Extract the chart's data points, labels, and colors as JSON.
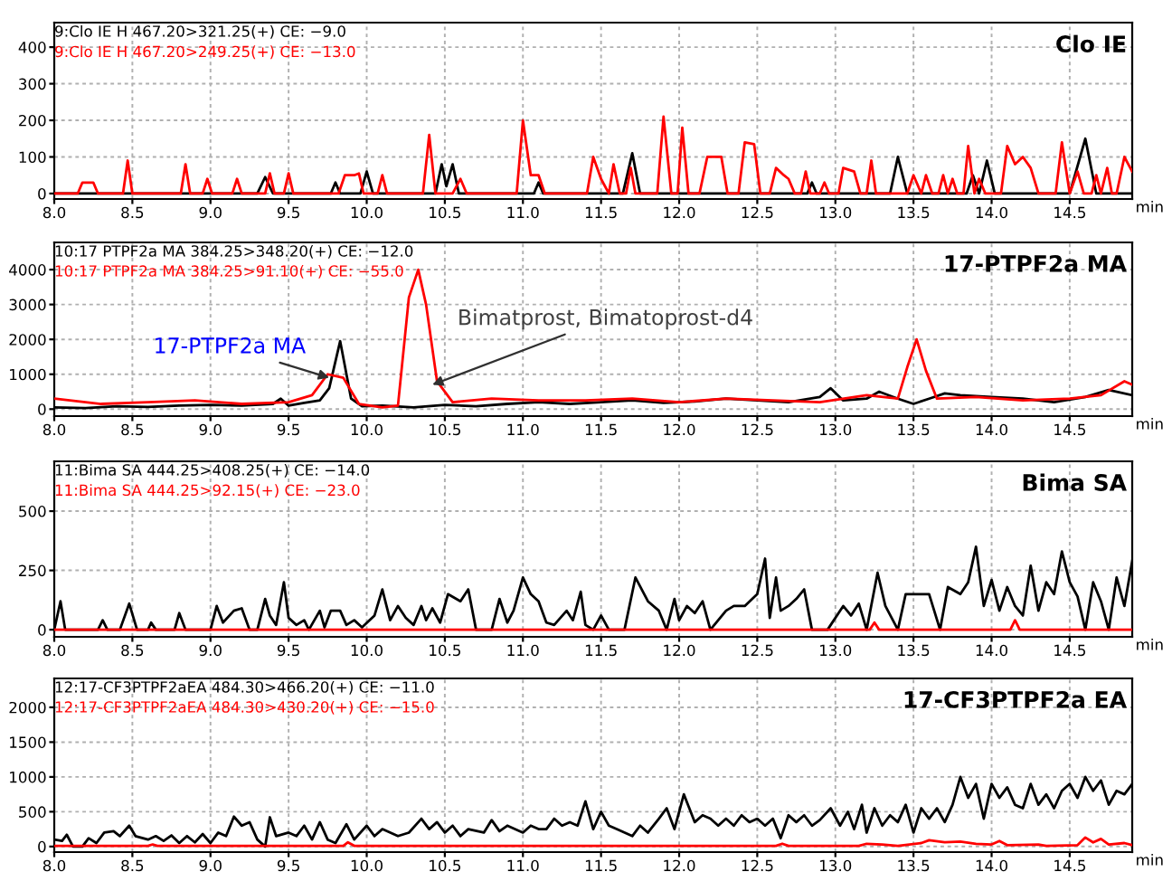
{
  "chart_data": [
    {
      "type": "line",
      "title": "Clo IE",
      "xlabel": "min",
      "xlim": [
        8.0,
        14.9
      ],
      "xticks": [
        {
          "value": 8,
          "label": "8.0"
        },
        8.5,
        {
          "value": 9,
          "label": "9.0"
        },
        9.5,
        {
          "value": 10,
          "label": "10.0"
        },
        10.5,
        {
          "value": 11,
          "label": "11.0"
        },
        11.5,
        {
          "value": 12,
          "label": "12.0"
        },
        12.5,
        {
          "value": 13,
          "label": "13.0"
        },
        13.5,
        {
          "value": 14,
          "label": "14.0"
        },
        14.5
      ],
      "ylim": [
        -15,
        467
      ],
      "yticks": [
        0,
        100,
        200,
        300,
        400
      ],
      "grid": true,
      "legend": false,
      "series": [
        {
          "name": "9:Clo IE H 467.20>321.25(+) CE: −9.0",
          "color": "#000000",
          "x": [
            8.0,
            9.3,
            9.35,
            9.4,
            9.77,
            9.8,
            9.83,
            9.96,
            10.0,
            10.04,
            10.44,
            10.48,
            10.51,
            10.55,
            10.59,
            11.07,
            11.1,
            11.13,
            11.64,
            11.7,
            11.75,
            12.82,
            12.85,
            12.88,
            13.35,
            13.4,
            13.46,
            13.84,
            13.88,
            13.92,
            13.97,
            14.02,
            14.5,
            14.6,
            14.67,
            14.9
          ],
          "values": [
            0,
            0,
            45,
            0,
            0,
            30,
            0,
            0,
            60,
            0,
            0,
            80,
            20,
            80,
            0,
            0,
            30,
            0,
            0,
            110,
            0,
            0,
            30,
            0,
            0,
            100,
            0,
            0,
            50,
            0,
            90,
            0,
            0,
            150,
            0,
            0
          ]
        },
        {
          "name": "9:Clo IE H 467.20>249.25(+) CE: −13.0",
          "color": "#ff0000",
          "x": [
            8.0,
            8.15,
            8.18,
            8.25,
            8.28,
            8.44,
            8.47,
            8.5,
            8.81,
            8.84,
            8.87,
            8.95,
            8.98,
            9.01,
            9.14,
            9.17,
            9.2,
            9.35,
            9.38,
            9.41,
            9.47,
            9.5,
            9.53,
            9.82,
            9.86,
            9.92,
            9.95,
            9.98,
            10.07,
            10.1,
            10.13,
            10.36,
            10.4,
            10.44,
            10.55,
            10.6,
            10.64,
            10.96,
            11.0,
            11.05,
            11.1,
            11.14,
            11.41,
            11.45,
            11.5,
            11.55,
            11.58,
            11.62,
            11.66,
            11.69,
            11.72,
            11.86,
            11.9,
            11.95,
            11.99,
            12.02,
            12.06,
            12.13,
            12.18,
            12.27,
            12.31,
            12.38,
            12.42,
            12.48,
            12.52,
            12.58,
            12.62,
            12.67,
            12.7,
            12.74,
            12.78,
            12.81,
            12.84,
            12.9,
            12.93,
            12.96,
            13.02,
            13.05,
            13.12,
            13.16,
            13.2,
            13.23,
            13.26,
            13.46,
            13.5,
            13.55,
            13.58,
            13.62,
            13.66,
            13.69,
            13.72,
            13.75,
            13.78,
            13.82,
            13.85,
            13.89,
            13.92,
            13.96,
            14.06,
            14.1,
            14.15,
            14.2,
            14.25,
            14.3,
            14.35,
            14.41,
            14.45,
            14.5,
            14.55,
            14.59,
            14.64,
            14.67,
            14.7,
            14.74,
            14.77,
            14.8,
            14.85,
            14.9
          ],
          "values": [
            0,
            0,
            30,
            30,
            0,
            0,
            90,
            0,
            0,
            80,
            0,
            0,
            40,
            0,
            0,
            40,
            0,
            0,
            55,
            0,
            0,
            55,
            0,
            0,
            50,
            50,
            55,
            0,
            0,
            50,
            0,
            0,
            160,
            0,
            0,
            40,
            0,
            0,
            200,
            50,
            50,
            0,
            0,
            100,
            40,
            0,
            80,
            0,
            0,
            70,
            0,
            0,
            210,
            0,
            0,
            180,
            0,
            0,
            100,
            100,
            0,
            0,
            140,
            135,
            0,
            0,
            70,
            50,
            40,
            0,
            0,
            60,
            0,
            0,
            30,
            0,
            0,
            70,
            60,
            0,
            0,
            90,
            0,
            0,
            50,
            0,
            50,
            0,
            0,
            50,
            0,
            40,
            0,
            0,
            130,
            0,
            40,
            0,
            0,
            130,
            80,
            100,
            70,
            0,
            0,
            0,
            140,
            0,
            60,
            0,
            0,
            50,
            0,
            70,
            0,
            0,
            100,
            60
          ]
        }
      ]
    },
    {
      "type": "line",
      "title": "17-PTPF2a MA",
      "xlabel": "min",
      "xlim": [
        8.0,
        14.9
      ],
      "xticks": [
        {
          "value": 8,
          "label": "8.0"
        },
        8.5,
        {
          "value": 9,
          "label": "9.0"
        },
        9.5,
        {
          "value": 10,
          "label": "10.0"
        },
        10.5,
        {
          "value": 11,
          "label": "11.0"
        },
        11.5,
        {
          "value": 12,
          "label": "12.0"
        },
        12.5,
        {
          "value": 13,
          "label": "13.0"
        },
        13.5,
        {
          "value": 14,
          "label": "14.0"
        },
        14.5
      ],
      "ylim": [
        -200,
        4780
      ],
      "yticks": [
        0,
        1000,
        2000,
        3000,
        4000
      ],
      "grid": true,
      "legend": false,
      "annotations": [
        {
          "text": "17-PTPF2a MA",
          "x": 9.76,
          "y": 900
        },
        {
          "text": "Bimatprost, Bimatoprost-d4",
          "x": 10.42,
          "y": 700
        }
      ],
      "series": [
        {
          "name": "10:17 PTPF2a MA 384.25>348.20(+) CE: −12.0",
          "color": "#000000",
          "x": [
            8.0,
            8.2,
            8.4,
            8.6,
            8.8,
            9.0,
            9.2,
            9.4,
            9.45,
            9.5,
            9.6,
            9.7,
            9.76,
            9.83,
            9.9,
            9.97,
            10.1,
            10.3,
            10.5,
            10.7,
            10.9,
            11.1,
            11.3,
            11.5,
            11.7,
            11.9,
            12.1,
            12.3,
            12.5,
            12.7,
            12.9,
            12.97,
            13.05,
            13.2,
            13.28,
            13.4,
            13.5,
            13.6,
            13.7,
            13.8,
            14.0,
            14.2,
            14.4,
            14.6,
            14.75,
            14.9
          ],
          "values": [
            50,
            30,
            80,
            60,
            100,
            120,
            100,
            150,
            300,
            100,
            180,
            250,
            600,
            1950,
            300,
            80,
            100,
            50,
            120,
            80,
            150,
            200,
            150,
            200,
            250,
            180,
            220,
            300,
            250,
            200,
            350,
            600,
            250,
            300,
            500,
            300,
            150,
            300,
            450,
            400,
            350,
            300,
            200,
            350,
            550,
            400
          ]
        },
        {
          "name": "10:17 PTPF2a MA 384.25>91.10(+) CE: −55.0",
          "color": "#ff0000",
          "x": [
            8.0,
            8.3,
            8.6,
            8.9,
            9.2,
            9.5,
            9.65,
            9.75,
            9.85,
            9.95,
            10.1,
            10.2,
            10.27,
            10.33,
            10.38,
            10.45,
            10.55,
            10.8,
            11.1,
            11.4,
            11.7,
            12.0,
            12.3,
            12.6,
            12.9,
            13.2,
            13.4,
            13.46,
            13.52,
            13.58,
            13.65,
            13.9,
            14.2,
            14.5,
            14.7,
            14.85,
            14.9
          ],
          "values": [
            300,
            150,
            200,
            250,
            150,
            200,
            400,
            1000,
            900,
            150,
            50,
            100,
            3200,
            4000,
            3000,
            800,
            200,
            300,
            250,
            250,
            300,
            200,
            300,
            250,
            200,
            400,
            300,
            1200,
            2000,
            1100,
            300,
            350,
            250,
            300,
            400,
            800,
            700
          ]
        }
      ]
    },
    {
      "type": "line",
      "title": "Bima SA",
      "xlabel": "min",
      "xlim": [
        8.0,
        14.9
      ],
      "xticks": [
        {
          "value": 8,
          "label": "8.0"
        },
        8.5,
        {
          "value": 9,
          "label": "9.0"
        },
        9.5,
        {
          "value": 10,
          "label": "10.0"
        },
        10.5,
        {
          "value": 11,
          "label": "11.0"
        },
        11.5,
        {
          "value": 12,
          "label": "12.0"
        },
        12.5,
        {
          "value": 13,
          "label": "13.0"
        },
        13.5,
        {
          "value": 14,
          "label": "14.0"
        },
        14.5
      ],
      "ylim": [
        -30,
        710
      ],
      "yticks": [
        0,
        250,
        500
      ],
      "grid": true,
      "legend": false,
      "series": [
        {
          "name": "11:Bima SA 444.25>408.25(+) CE: −14.0",
          "color": "#000000",
          "x": [
            8.0,
            8.04,
            8.07,
            8.1,
            8.28,
            8.31,
            8.34,
            8.42,
            8.48,
            8.53,
            8.6,
            8.62,
            8.65,
            8.77,
            8.8,
            8.84,
            9.0,
            9.04,
            9.08,
            9.15,
            9.2,
            9.25,
            9.3,
            9.35,
            9.38,
            9.42,
            9.47,
            9.5,
            9.55,
            9.6,
            9.63,
            9.7,
            9.73,
            9.77,
            9.83,
            9.87,
            9.92,
            9.97,
            10.05,
            10.1,
            10.15,
            10.2,
            10.25,
            10.3,
            10.35,
            10.38,
            10.42,
            10.47,
            10.52,
            10.6,
            10.65,
            10.7,
            10.8,
            10.85,
            10.9,
            10.94,
            11.0,
            11.05,
            11.1,
            11.15,
            11.2,
            11.28,
            11.32,
            11.37,
            11.4,
            11.45,
            11.5,
            11.55,
            11.65,
            11.72,
            11.8,
            11.87,
            11.92,
            11.97,
            12.0,
            12.05,
            12.1,
            12.15,
            12.2,
            12.25,
            12.3,
            12.35,
            12.42,
            12.5,
            12.55,
            12.58,
            12.62,
            12.65,
            12.7,
            12.75,
            12.8,
            12.85,
            12.95,
            13.05,
            13.1,
            13.15,
            13.2,
            13.27,
            13.32,
            13.4,
            13.45,
            13.55,
            13.6,
            13.67,
            13.72,
            13.8,
            13.85,
            13.9,
            13.95,
            14.0,
            14.05,
            14.1,
            14.15,
            14.2,
            14.25,
            14.3,
            14.35,
            14.4,
            14.45,
            14.5,
            14.55,
            14.6,
            14.65,
            14.7,
            14.75,
            14.8,
            14.85,
            14.9
          ],
          "values": [
            0,
            120,
            0,
            0,
            0,
            40,
            0,
            0,
            110,
            0,
            0,
            30,
            0,
            0,
            70,
            0,
            0,
            100,
            30,
            80,
            90,
            0,
            0,
            130,
            60,
            20,
            200,
            50,
            20,
            40,
            0,
            80,
            10,
            80,
            80,
            20,
            40,
            10,
            60,
            170,
            40,
            100,
            50,
            20,
            100,
            40,
            90,
            30,
            150,
            120,
            170,
            0,
            0,
            130,
            30,
            80,
            220,
            150,
            120,
            30,
            20,
            80,
            40,
            160,
            20,
            0,
            60,
            0,
            0,
            220,
            120,
            80,
            0,
            130,
            40,
            100,
            70,
            120,
            0,
            40,
            80,
            100,
            100,
            150,
            300,
            50,
            220,
            80,
            100,
            130,
            170,
            0,
            0,
            100,
            60,
            110,
            0,
            240,
            100,
            0,
            150,
            150,
            150,
            0,
            180,
            150,
            200,
            350,
            100,
            210,
            80,
            180,
            100,
            60,
            270,
            80,
            200,
            150,
            330,
            200,
            140,
            0,
            200,
            120,
            0,
            220,
            100,
            290
          ]
        },
        {
          "name": "11:Bima SA 444.25>92.15(+) CE: −23.0",
          "color": "#ff0000",
          "x": [
            8.0,
            13.22,
            13.25,
            13.28,
            14.12,
            14.15,
            14.18,
            14.9
          ],
          "values": [
            0,
            0,
            30,
            0,
            0,
            40,
            0,
            0
          ]
        }
      ]
    },
    {
      "type": "line",
      "title": "17-CF3PTPF2a EA",
      "xlabel": "min",
      "xlim": [
        8.0,
        14.9
      ],
      "xticks": [
        {
          "value": 8,
          "label": "8.0"
        },
        8.5,
        {
          "value": 9,
          "label": "9.0"
        },
        9.5,
        {
          "value": 10,
          "label": "10.0"
        },
        10.5,
        {
          "value": 11,
          "label": "11.0"
        },
        11.5,
        {
          "value": 12,
          "label": "12.0"
        },
        12.5,
        {
          "value": 13,
          "label": "13.0"
        },
        13.5,
        {
          "value": 14,
          "label": "14.0"
        },
        14.5
      ],
      "ylim": [
        -80,
        2415
      ],
      "yticks": [
        0,
        500,
        1000,
        1500,
        2000
      ],
      "grid": true,
      "legend": false,
      "series": [
        {
          "name": "12:17-CF3PTPF2aEA 484.30>466.20(+) CE: −11.0",
          "color": "#000000",
          "x": [
            8.0,
            8.05,
            8.08,
            8.12,
            8.18,
            8.22,
            8.27,
            8.32,
            8.38,
            8.42,
            8.48,
            8.52,
            8.6,
            8.65,
            8.7,
            8.75,
            8.8,
            8.85,
            8.9,
            8.95,
            9.0,
            9.05,
            9.1,
            9.15,
            9.2,
            9.25,
            9.3,
            9.35,
            9.38,
            9.42,
            9.5,
            9.55,
            9.6,
            9.65,
            9.7,
            9.75,
            9.8,
            9.87,
            9.92,
            10.0,
            10.05,
            10.1,
            10.2,
            10.27,
            10.35,
            10.4,
            10.45,
            10.5,
            10.55,
            10.6,
            10.65,
            10.75,
            10.8,
            10.85,
            10.9,
            11.0,
            11.05,
            11.1,
            11.15,
            11.2,
            11.25,
            11.3,
            11.35,
            11.4,
            11.45,
            11.5,
            11.55,
            11.6,
            11.7,
            11.75,
            11.8,
            11.87,
            11.92,
            11.97,
            12.03,
            12.1,
            12.15,
            12.2,
            12.25,
            12.3,
            12.35,
            12.4,
            12.45,
            12.5,
            12.55,
            12.6,
            12.65,
            12.7,
            12.75,
            12.8,
            12.85,
            12.9,
            12.97,
            13.03,
            13.08,
            13.12,
            13.17,
            13.2,
            13.25,
            13.3,
            13.35,
            13.4,
            13.45,
            13.5,
            13.55,
            13.6,
            13.65,
            13.7,
            13.75,
            13.8,
            13.85,
            13.9,
            13.95,
            14.0,
            14.05,
            14.1,
            14.15,
            14.2,
            14.25,
            14.3,
            14.35,
            14.4,
            14.45,
            14.5,
            14.55,
            14.6,
            14.65,
            14.7,
            14.75,
            14.8,
            14.85,
            14.9
          ],
          "values": [
            100,
            80,
            170,
            0,
            0,
            120,
            50,
            200,
            220,
            150,
            300,
            150,
            100,
            150,
            80,
            160,
            50,
            150,
            60,
            180,
            50,
            200,
            150,
            430,
            300,
            350,
            100,
            0,
            420,
            150,
            200,
            150,
            300,
            100,
            350,
            100,
            50,
            320,
            100,
            300,
            150,
            250,
            150,
            200,
            400,
            250,
            350,
            200,
            300,
            150,
            250,
            200,
            380,
            220,
            300,
            200,
            300,
            250,
            250,
            400,
            300,
            350,
            300,
            650,
            250,
            500,
            300,
            250,
            150,
            300,
            200,
            400,
            550,
            250,
            750,
            350,
            450,
            400,
            300,
            400,
            300,
            450,
            350,
            400,
            300,
            400,
            120,
            450,
            350,
            450,
            300,
            380,
            550,
            300,
            500,
            250,
            600,
            200,
            550,
            300,
            450,
            350,
            600,
            200,
            550,
            400,
            550,
            350,
            600,
            1000,
            700,
            900,
            400,
            900,
            700,
            850,
            600,
            550,
            900,
            600,
            750,
            550,
            800,
            900,
            700,
            1000,
            800,
            950,
            600,
            800,
            750,
            900
          ]
        },
        {
          "name": "12:17-CF3PTPF2aEA 484.30>430.20(+) CE: −15.0",
          "color": "#ff0000",
          "x": [
            8.0,
            8.6,
            8.63,
            8.66,
            9.85,
            9.88,
            9.92,
            12.62,
            12.66,
            12.7,
            13.15,
            13.2,
            13.3,
            13.4,
            13.55,
            13.6,
            13.7,
            13.8,
            13.9,
            14.0,
            14.05,
            14.1,
            14.3,
            14.35,
            14.55,
            14.6,
            14.65,
            14.7,
            14.75,
            14.85,
            14.9
          ],
          "values": [
            10,
            10,
            30,
            10,
            10,
            60,
            10,
            10,
            40,
            10,
            10,
            40,
            30,
            10,
            50,
            90,
            60,
            70,
            40,
            30,
            80,
            20,
            30,
            10,
            20,
            130,
            60,
            110,
            30,
            50,
            20
          ]
        }
      ]
    }
  ]
}
